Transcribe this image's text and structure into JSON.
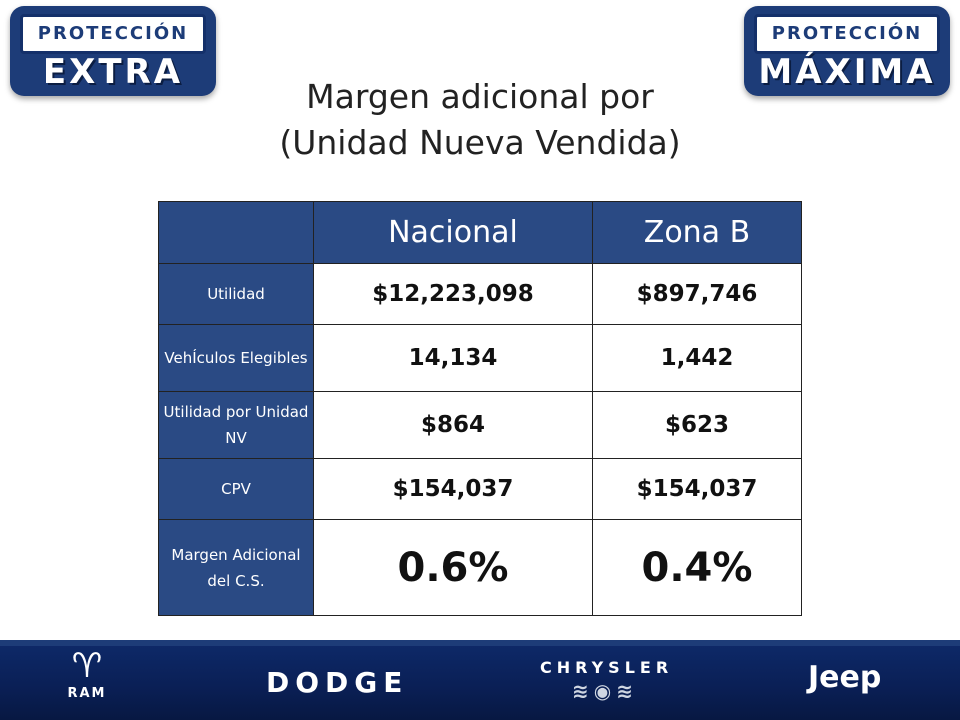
{
  "badges": {
    "left": {
      "top": "PROTECCIÓN",
      "bottom": "EXTRA"
    },
    "right": {
      "top": "PROTECCIÓN",
      "bottom": "MÁXIMA"
    }
  },
  "title": {
    "line1": "Margen adicional por",
    "line2": "(Unidad Nueva Vendida)"
  },
  "table": {
    "columns": [
      "",
      "Nacional",
      "Zona B"
    ],
    "rows": [
      {
        "label": "Utilidad",
        "nacional": "$12,223,098",
        "zona_b": "$897,746"
      },
      {
        "label": "VehÍculos Elegibles",
        "nacional": "14,134",
        "zona_b": "1,442"
      },
      {
        "label": "Utilidad por Unidad NV",
        "nacional": "$864",
        "zona_b": "$623"
      },
      {
        "label": "CPV",
        "nacional": "$154,037",
        "zona_b": "$154,037"
      },
      {
        "label": "Margen Adicional del C.S.",
        "nacional": "0.6%",
        "zona_b": "0.4%"
      }
    ]
  },
  "footer": {
    "brands": {
      "ram": "RAM",
      "dodge": "DODGE",
      "chrysler": "CHRYSLER",
      "jeep": "Jeep"
    }
  }
}
